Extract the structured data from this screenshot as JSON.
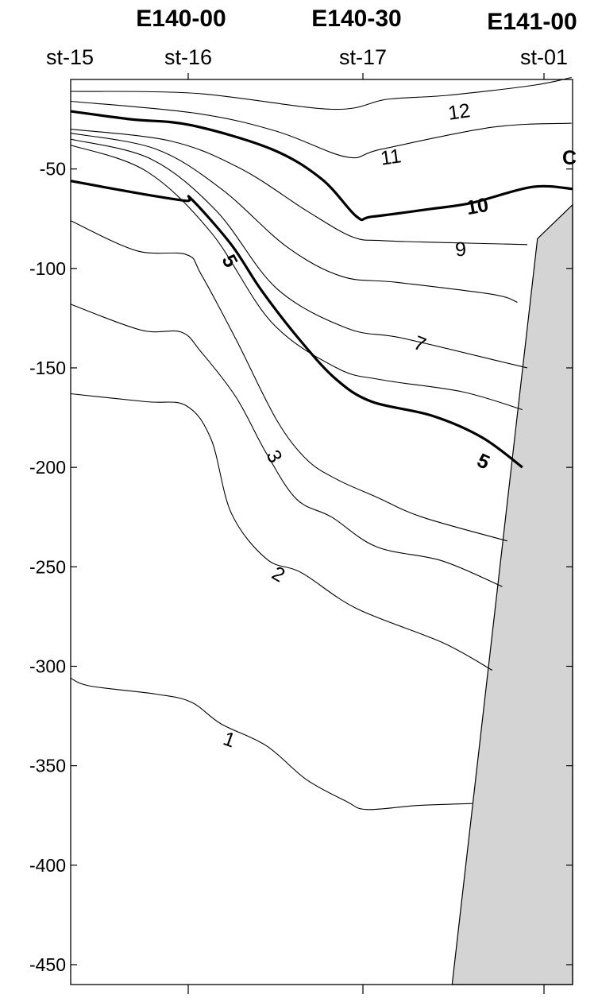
{
  "chart_data": {
    "type": "contour",
    "longitude_labels": [
      "E140-00",
      "E140-30",
      "E141-00"
    ],
    "stations": [
      {
        "label": "st-15",
        "lon": 139.75
      },
      {
        "label": "st-16",
        "lon": 140.0
      },
      {
        "label": "st-17",
        "lon": 140.5
      },
      {
        "label": "st-01",
        "lon": 141.0
      }
    ],
    "y_ticks": [
      -50,
      -100,
      -150,
      -200,
      -250,
      -300,
      -350,
      -400,
      -450
    ],
    "ylim": [
      -460,
      -5
    ],
    "contour_labels": [
      "1",
      "2",
      "3",
      "5",
      "5",
      "7",
      "9",
      "10",
      "11",
      "12"
    ],
    "partial_label": "C",
    "contours": [
      {
        "level": 12,
        "bold": false,
        "label": "12",
        "points": [
          [
            0,
            -11
          ],
          [
            0.25,
            -12
          ],
          [
            0.52,
            -20
          ],
          [
            0.63,
            -15
          ],
          [
            0.75,
            -13
          ],
          [
            0.92,
            -8
          ],
          [
            0.998,
            -4
          ]
        ]
      },
      {
        "level": 11,
        "bold": false,
        "label": "11",
        "points": [
          [
            0,
            -16
          ],
          [
            0.25,
            -22
          ],
          [
            0.41,
            -31
          ],
          [
            0.55,
            -44
          ],
          [
            0.62,
            -40
          ],
          [
            0.84,
            -29
          ],
          [
            0.998,
            -27
          ]
        ]
      },
      {
        "level": 10,
        "bold": true,
        "label": "10",
        "points": [
          [
            0,
            -21
          ],
          [
            0.12,
            -25
          ],
          [
            0.24,
            -28
          ],
          [
            0.4,
            -40
          ],
          [
            0.5,
            -55
          ],
          [
            0.57,
            -74
          ],
          [
            0.6,
            -74
          ],
          [
            0.72,
            -70
          ],
          [
            0.8,
            -67
          ],
          [
            0.92,
            -59
          ],
          [
            1.0,
            -60
          ]
        ]
      },
      {
        "level": 9,
        "bold": false,
        "label": "9",
        "points": [
          [
            0,
            -30
          ],
          [
            0.2,
            -36
          ],
          [
            0.34,
            -50
          ],
          [
            0.47,
            -71
          ],
          [
            0.56,
            -84
          ],
          [
            0.62,
            -86
          ],
          [
            0.75,
            -87
          ],
          [
            0.91,
            -88
          ]
        ]
      },
      {
        "level": 8,
        "bold": false,
        "points": [
          [
            0,
            -32
          ],
          [
            0.17,
            -40
          ],
          [
            0.3,
            -60
          ],
          [
            0.43,
            -89
          ],
          [
            0.54,
            -104
          ],
          [
            0.65,
            -107
          ],
          [
            0.84,
            -113
          ],
          [
            0.89,
            -117
          ]
        ]
      },
      {
        "level": 7,
        "bold": false,
        "label": "7",
        "points": [
          [
            0,
            -35
          ],
          [
            0.16,
            -45
          ],
          [
            0.29,
            -71
          ],
          [
            0.41,
            -110
          ],
          [
            0.55,
            -130
          ],
          [
            0.66,
            -135
          ],
          [
            0.86,
            -147
          ],
          [
            0.91,
            -150
          ]
        ]
      },
      {
        "level": 6,
        "bold": false,
        "points": [
          [
            0,
            -38
          ],
          [
            0.15,
            -51
          ],
          [
            0.28,
            -82
          ],
          [
            0.4,
            -127
          ],
          [
            0.53,
            -150
          ],
          [
            0.62,
            -156
          ],
          [
            0.78,
            -162
          ],
          [
            0.9,
            -171
          ]
        ]
      },
      {
        "level": 5,
        "bold": true,
        "label": "5",
        "points": [
          [
            0,
            -56
          ],
          [
            0.13,
            -62
          ],
          [
            0.23,
            -66
          ],
          [
            0.24,
            -65
          ],
          [
            0.32,
            -88
          ],
          [
            0.38,
            -111
          ],
          [
            0.46,
            -137
          ],
          [
            0.53,
            -156
          ],
          [
            0.6,
            -167
          ],
          [
            0.72,
            -174
          ],
          [
            0.82,
            -185
          ],
          [
            0.9,
            -200
          ]
        ]
      },
      {
        "level": 4,
        "bold": false,
        "points": [
          [
            0,
            -76
          ],
          [
            0.13,
            -91
          ],
          [
            0.23,
            -93
          ],
          [
            0.26,
            -103
          ],
          [
            0.33,
            -136
          ],
          [
            0.41,
            -176
          ],
          [
            0.47,
            -196
          ],
          [
            0.53,
            -206
          ],
          [
            0.61,
            -215
          ],
          [
            0.7,
            -225
          ],
          [
            0.87,
            -237
          ]
        ]
      },
      {
        "level": 3,
        "bold": false,
        "label": "3",
        "points": [
          [
            0,
            -118
          ],
          [
            0.14,
            -131
          ],
          [
            0.22,
            -132
          ],
          [
            0.26,
            -142
          ],
          [
            0.33,
            -165
          ],
          [
            0.39,
            -193
          ],
          [
            0.45,
            -216
          ],
          [
            0.52,
            -225
          ],
          [
            0.61,
            -240
          ],
          [
            0.74,
            -247
          ],
          [
            0.86,
            -260
          ]
        ]
      },
      {
        "level": 2,
        "bold": false,
        "label": "2",
        "points": [
          [
            0,
            -163
          ],
          [
            0.15,
            -167
          ],
          [
            0.23,
            -169
          ],
          [
            0.28,
            -186
          ],
          [
            0.32,
            -223
          ],
          [
            0.39,
            -246
          ],
          [
            0.46,
            -253
          ],
          [
            0.57,
            -271
          ],
          [
            0.74,
            -288
          ],
          [
            0.84,
            -302
          ]
        ]
      },
      {
        "level": 1,
        "bold": false,
        "label": "1",
        "points": [
          [
            0,
            -306
          ],
          [
            0.04,
            -310
          ],
          [
            0.17,
            -314
          ],
          [
            0.24,
            -318
          ],
          [
            0.3,
            -329
          ],
          [
            0.39,
            -340
          ],
          [
            0.47,
            -357
          ],
          [
            0.55,
            -368
          ],
          [
            0.59,
            -372
          ],
          [
            0.69,
            -370
          ],
          [
            0.8,
            -369
          ]
        ]
      }
    ],
    "bottom_topography": [
      [
        0.93,
        -85
      ],
      [
        1.0,
        -68
      ],
      [
        1.0,
        -460
      ],
      [
        0.76,
        -460
      ]
    ]
  }
}
